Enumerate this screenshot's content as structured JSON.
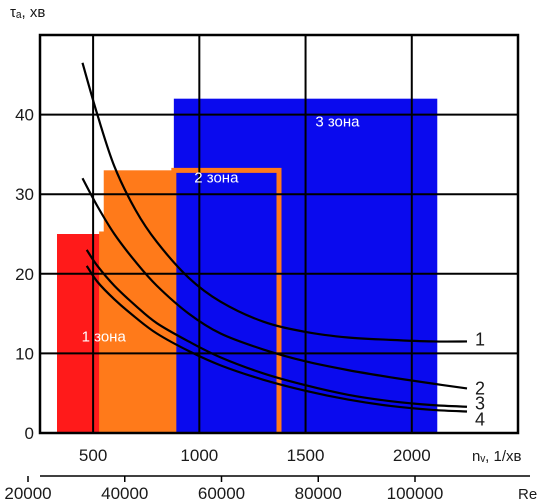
{
  "chart_data": {
    "type": "line",
    "ylabel": "τₐ, хв",
    "xlabel": "nᵥ, 1/хв",
    "secondary_xlabel": "Re",
    "xlim": [
      250,
      2500
    ],
    "ylim": [
      0,
      50
    ],
    "xticks": [
      "500",
      "1000",
      "1500",
      "2000"
    ],
    "xtick_values": [
      500,
      1000,
      1500,
      2000
    ],
    "yticks": [
      "0",
      "10",
      "20",
      "30",
      "40"
    ],
    "ytick_values": [
      0,
      10,
      20,
      30,
      40
    ],
    "secondary_xticks": [
      "20000",
      "40000",
      "60000",
      "80000",
      "100000"
    ],
    "secondary_xtick_values": [
      20000,
      40000,
      60000,
      80000,
      100000
    ],
    "grid": true,
    "zones": [
      {
        "label": "1 зона",
        "x_range": [
          330,
          800
        ],
        "y_max": 25,
        "color": "#ff1a1a",
        "outline_x_range": [
          540,
          775
        ],
        "outline_y_max": 25,
        "outline_color": "#ff7a1a"
      },
      {
        "label": "2 зона",
        "x_range": [
          550,
          1380
        ],
        "y_max": 33,
        "color": "#ff7a1a",
        "outline_x_range": [
          880,
          1375
        ],
        "outline_y_max": 33,
        "outline_color": "#ff7a1a"
      },
      {
        "label": "3 зона",
        "x_range": [
          880,
          2120
        ],
        "y_max": 42,
        "color": "#0a0aee"
      }
    ],
    "series": [
      {
        "name": "1",
        "x": [
          450,
          520,
          600,
          700,
          800,
          950,
          1100,
          1300,
          1500,
          1700,
          1900,
          2100,
          2260
        ],
        "y": [
          46.5,
          40,
          33.5,
          28,
          24,
          19.5,
          16.5,
          14,
          12.7,
          12,
          11.7,
          11.5,
          11.5
        ]
      },
      {
        "name": "2",
        "x": [
          450,
          520,
          600,
          700,
          800,
          950,
          1100,
          1300,
          1500,
          1700,
          1900,
          2100,
          2260
        ],
        "y": [
          32,
          28.5,
          25,
          21.5,
          18.5,
          15,
          12.5,
          10.5,
          9,
          7.9,
          7,
          6.2,
          5.6
        ]
      },
      {
        "name": "3",
        "x": [
          470,
          520,
          600,
          700,
          800,
          950,
          1100,
          1300,
          1500,
          1700,
          1900,
          2100,
          2260
        ],
        "y": [
          23,
          21,
          18.5,
          16,
          13.8,
          11.5,
          9.5,
          7.5,
          6,
          4.8,
          4,
          3.5,
          3.3
        ]
      },
      {
        "name": "4",
        "x": [
          470,
          520,
          600,
          700,
          800,
          950,
          1100,
          1300,
          1500,
          1700,
          1900,
          2100,
          2260
        ],
        "y": [
          21,
          19,
          16.8,
          14.5,
          12.5,
          10.3,
          8.5,
          6.7,
          5.3,
          4.2,
          3.4,
          2.9,
          2.7
        ]
      }
    ]
  }
}
